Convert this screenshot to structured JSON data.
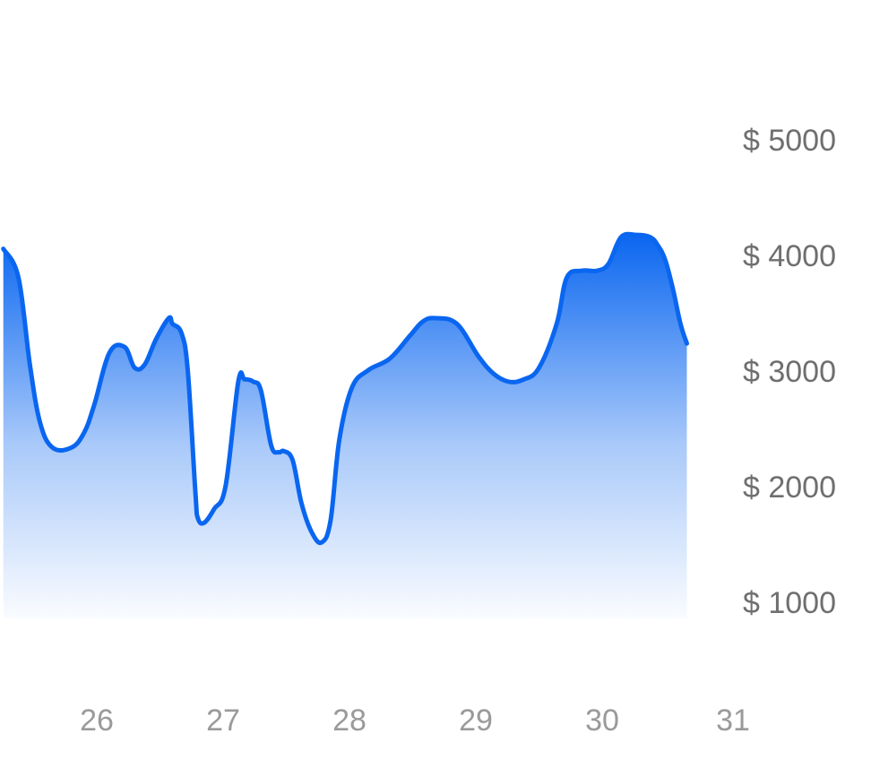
{
  "chart_data": {
    "type": "area",
    "x_ticks": [
      "26",
      "27",
      "28",
      "29",
      "30",
      "31"
    ],
    "x_range": [
      25.25,
      31
    ],
    "y_ticks": [
      "$ 5000",
      "$ 4000",
      "$ 3000",
      "$ 2000",
      "$ 1000"
    ],
    "y_tick_values": [
      5000,
      4000,
      3000,
      2000,
      1000
    ],
    "ylim": [
      1000,
      5000
    ],
    "grid": false,
    "legend": "none",
    "colors": {
      "line": "#0a66f0",
      "fill_top": "#0a66f0",
      "fill_bottom": "#ffffff",
      "y_tick_text": "#6f6f6f",
      "x_tick_text": "#9a9a9a"
    },
    "series": [
      {
        "x": [
          25.26,
          25.38,
          25.47,
          25.55,
          25.65,
          25.8,
          25.9,
          25.98,
          26.1,
          26.22,
          26.3,
          26.38,
          26.47,
          26.57,
          26.6,
          26.67,
          26.72,
          26.78,
          26.8,
          26.85,
          26.93,
          27.02,
          27.12,
          27.17,
          27.24,
          27.3,
          27.38,
          27.44,
          27.48,
          27.55,
          27.62,
          27.7,
          27.78,
          27.85,
          27.92,
          28.02,
          28.15,
          28.32,
          28.48,
          28.58,
          28.68,
          28.85,
          29.02,
          29.14,
          29.26,
          29.38,
          29.5,
          29.64,
          29.72,
          29.84,
          29.96,
          30.05,
          30.15,
          30.27,
          30.38,
          30.44,
          30.5,
          30.56,
          30.62,
          30.67
        ],
        "y": [
          4050,
          3800,
          3050,
          2550,
          2330,
          2330,
          2460,
          2700,
          3150,
          3200,
          3020,
          3050,
          3270,
          3450,
          3400,
          3320,
          3000,
          1950,
          1720,
          1680,
          1800,
          2000,
          2900,
          2920,
          2900,
          2820,
          2350,
          2290,
          2300,
          2220,
          1850,
          1600,
          1510,
          1700,
          2400,
          2850,
          3000,
          3100,
          3300,
          3420,
          3450,
          3400,
          3120,
          2970,
          2900,
          2920,
          3020,
          3400,
          3800,
          3860,
          3860,
          3920,
          4150,
          4170,
          4150,
          4080,
          3950,
          3700,
          3400,
          3230
        ]
      }
    ]
  }
}
